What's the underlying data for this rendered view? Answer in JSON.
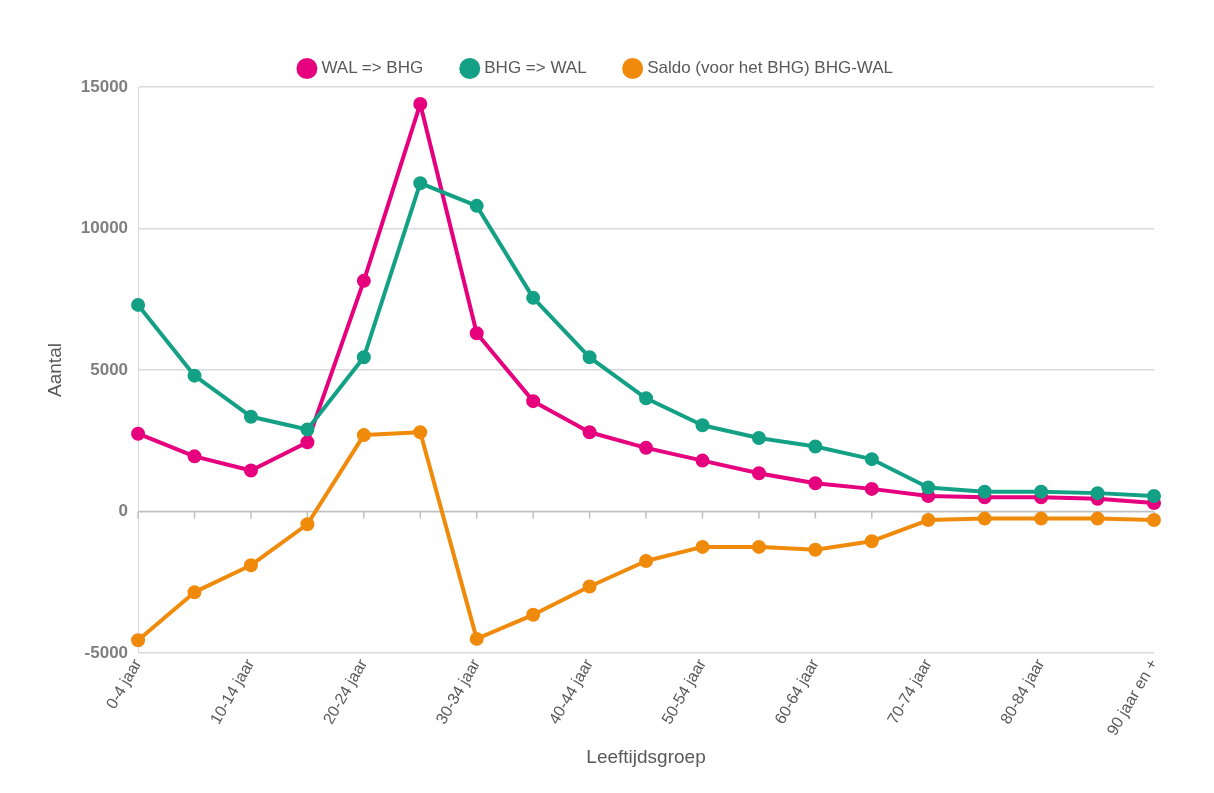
{
  "chart_data": {
    "type": "line",
    "xlabel": "Leeftijdsgroep",
    "ylabel": "Aantal",
    "categories": [
      "0-4 jaar",
      null,
      "10-14 jaar",
      null,
      "20-24 jaar",
      null,
      "30-34 jaar",
      null,
      "40-44 jaar",
      null,
      "50-54 jaar",
      null,
      "60-64 jaar",
      null,
      "70-74 jaar",
      null,
      "80-84 jaar",
      null,
      "90 jaar en +"
    ],
    "series": [
      {
        "name": "WAL => BHG",
        "color": "#e6007e",
        "values": [
          2750,
          1950,
          1450,
          2450,
          8150,
          14400,
          6300,
          3900,
          2800,
          2250,
          1800,
          1350,
          1000,
          800,
          550,
          500,
          500,
          450,
          300
        ]
      },
      {
        "name": "BHG => WAL",
        "color": "#13a085",
        "values": [
          7300,
          4800,
          3350,
          2900,
          5450,
          11600,
          10800,
          7550,
          5450,
          4000,
          3050,
          2600,
          2300,
          1850,
          850,
          700,
          700,
          650,
          550
        ]
      },
      {
        "name": "Saldo (voor het BHG) BHG-WAL",
        "color": "#f08a0b",
        "values": [
          -4550,
          -2850,
          -1900,
          -450,
          2700,
          2800,
          -4500,
          -3650,
          -2650,
          -1750,
          -1250,
          -1250,
          -1350,
          -1050,
          -300,
          -250,
          -250,
          -250,
          -300
        ]
      }
    ],
    "ylim": [
      -5000,
      15000
    ],
    "yticks": [
      -5000,
      0,
      5000,
      10000,
      15000
    ],
    "grid": "y",
    "legend": "top",
    "marker": "circle",
    "line_style": "solid"
  }
}
